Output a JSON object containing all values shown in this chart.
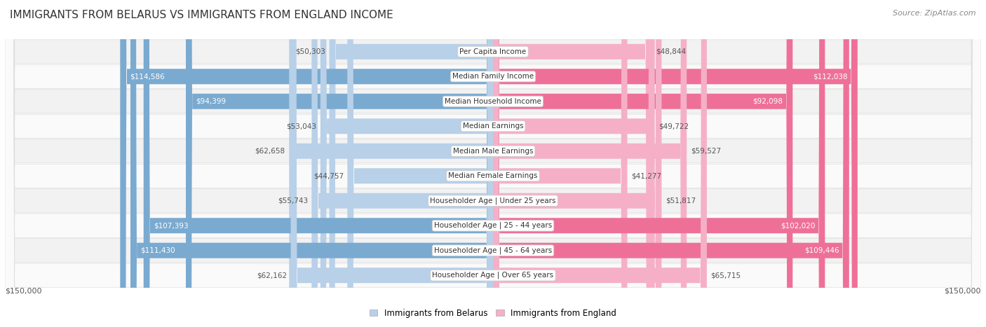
{
  "title": "IMMIGRANTS FROM BELARUS VS IMMIGRANTS FROM ENGLAND INCOME",
  "source": "Source: ZipAtlas.com",
  "categories": [
    "Per Capita Income",
    "Median Family Income",
    "Median Household Income",
    "Median Earnings",
    "Median Male Earnings",
    "Median Female Earnings",
    "Householder Age | Under 25 years",
    "Householder Age | 25 - 44 years",
    "Householder Age | 45 - 64 years",
    "Householder Age | Over 65 years"
  ],
  "belarus_values": [
    50303,
    114586,
    94399,
    53043,
    62658,
    44757,
    55743,
    107393,
    111430,
    62162
  ],
  "england_values": [
    48844,
    112038,
    92098,
    49722,
    59527,
    41277,
    51817,
    102020,
    109446,
    65715
  ],
  "max_value": 150000,
  "belarus_color_light": "#b8d0e8",
  "belarus_color_dark": "#7aaad0",
  "england_color_light": "#f5b0c8",
  "england_color_dark": "#ee7099",
  "bar_height": 0.62,
  "row_bg_even": "#f2f2f2",
  "row_bg_odd": "#fafafa",
  "inside_label_threshold": 75000,
  "label_fontsize": 7.5,
  "cat_fontsize": 7.5
}
